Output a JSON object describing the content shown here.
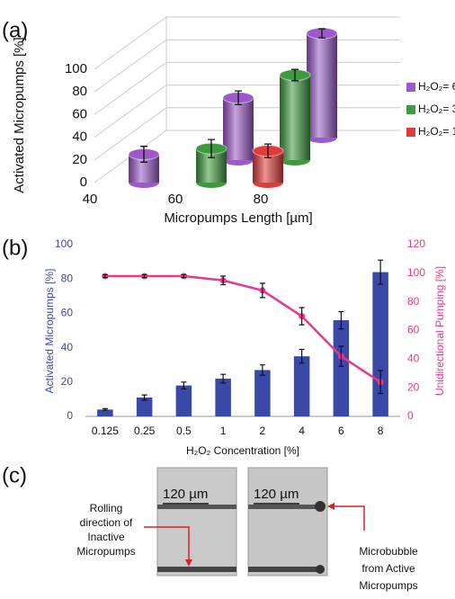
{
  "chart_data": [
    {
      "type": "bar3d",
      "panel_label": "(a)",
      "ylabel": "Activated Micropumps [%]",
      "xlabel": "Micropumps Length [µm]",
      "categories": [
        "40",
        "60",
        "80"
      ],
      "ylim": [
        0,
        100
      ],
      "yticks": [
        0,
        20,
        40,
        60,
        80,
        100
      ],
      "grid": true,
      "legend": "right",
      "series": [
        {
          "name": "H₂O₂= 6%",
          "color": "#9b59c9",
          "values": [
            25,
            55,
            92
          ],
          "errors": [
            7,
            6,
            4
          ]
        },
        {
          "name": "H₂O₂= 3%",
          "color": "#3f9a3f",
          "values": [
            null,
            30,
            75
          ],
          "errors": [
            null,
            8,
            5
          ]
        },
        {
          "name": "H₂O₂= 1%",
          "color": "#e23b3b",
          "values": [
            null,
            null,
            28
          ],
          "errors": [
            null,
            null,
            6
          ]
        }
      ]
    },
    {
      "type": "bar",
      "panel_label": "(b)",
      "ylabel": "Activated Micropumps [%]",
      "y2label": "Unidirectional Pumping [%]",
      "xlabel": "H₂O₂ Concentration [%]",
      "categories": [
        "0.125",
        "0.25",
        "0.5",
        "1",
        "2",
        "4",
        "6",
        "8"
      ],
      "ylim": [
        0,
        100
      ],
      "yticks": [
        0,
        20,
        40,
        60,
        80,
        100
      ],
      "y2lim": [
        0,
        120
      ],
      "y2ticks": [
        0,
        20,
        40,
        60,
        80,
        100,
        120
      ],
      "grid": false,
      "series": [
        {
          "name": "Activated Micropumps",
          "type": "bar",
          "color": "#3a48a8",
          "values": [
            4,
            11,
            18,
            22,
            27,
            35,
            56,
            84
          ],
          "errors": [
            0.5,
            1.5,
            2,
            2.5,
            3,
            4,
            5,
            7
          ]
        },
        {
          "name": "Unidirectional Pumping",
          "type": "line",
          "axis": "y2",
          "color": "#e8388a",
          "values": [
            98,
            98,
            98,
            95,
            88,
            70,
            42,
            24
          ],
          "errors": [
            1,
            1,
            1,
            3,
            5,
            6,
            7,
            8
          ]
        }
      ]
    }
  ],
  "panel_c": {
    "label": "(c)",
    "scale_labels": [
      "120 µm",
      "120 µm"
    ],
    "left_annotation": [
      "Rolling",
      "direction of",
      "Inactive",
      "Micropumps"
    ],
    "right_annotation": [
      "Microbubble",
      "from Active",
      "Micropumps"
    ]
  }
}
